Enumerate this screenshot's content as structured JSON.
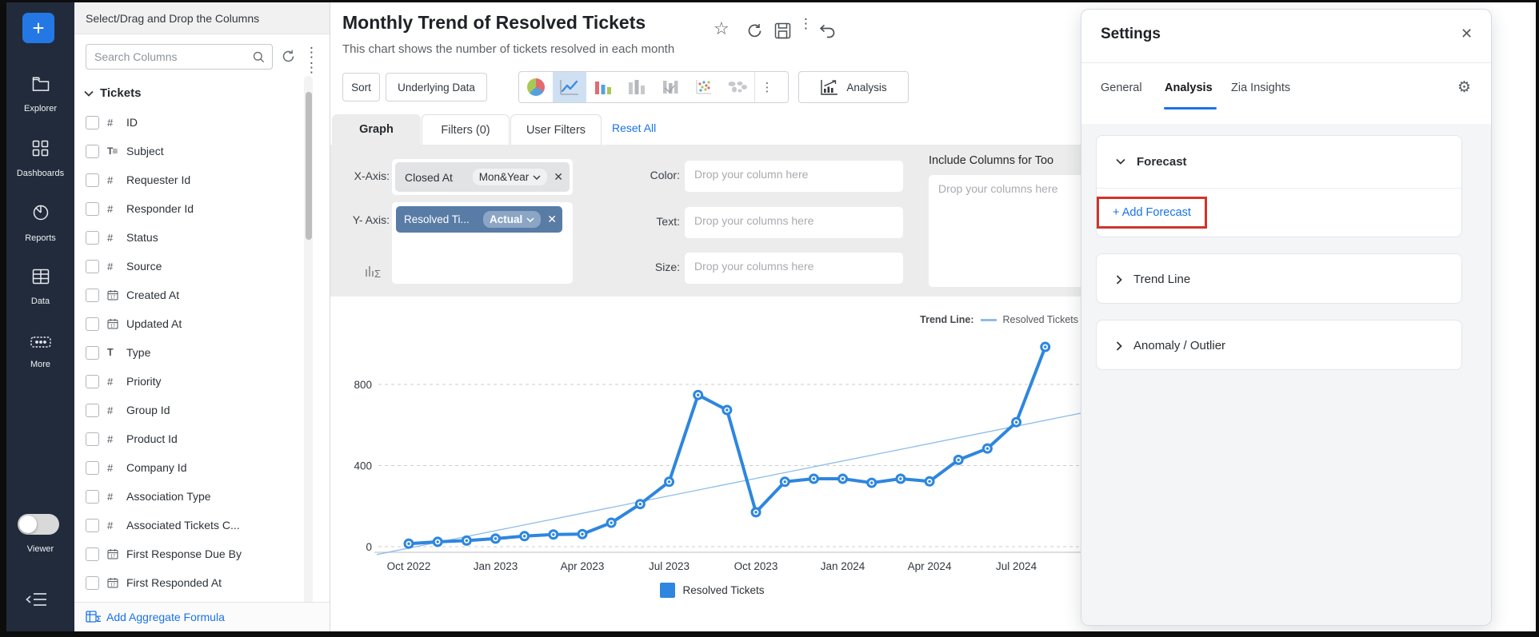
{
  "app": {
    "accent_color": "#1a73e8",
    "sidebar_color": "#222b3b",
    "series_color": "#2e86de",
    "trend_color": "#8cbcea",
    "highlight_color": "#d0342a"
  },
  "sidebar": {
    "plus_label": "+",
    "items": [
      {
        "label": "Explorer"
      },
      {
        "label": "Dashboards"
      },
      {
        "label": "Reports"
      },
      {
        "label": "Data"
      },
      {
        "label": "More"
      }
    ],
    "viewer_label": "Viewer"
  },
  "columns_panel": {
    "header": "Select/Drag and Drop the Columns",
    "search_placeholder": "Search Columns",
    "group_name": "Tickets",
    "items": [
      {
        "name": "ID",
        "type": "num"
      },
      {
        "name": "Subject",
        "type": "text"
      },
      {
        "name": "Requester Id",
        "type": "num"
      },
      {
        "name": "Responder Id",
        "type": "num"
      },
      {
        "name": "Status",
        "type": "num"
      },
      {
        "name": "Source",
        "type": "num"
      },
      {
        "name": "Created At",
        "type": "date"
      },
      {
        "name": "Updated At",
        "type": "date"
      },
      {
        "name": "Type",
        "type": "str"
      },
      {
        "name": "Priority",
        "type": "num"
      },
      {
        "name": "Group Id",
        "type": "num"
      },
      {
        "name": "Product Id",
        "type": "num"
      },
      {
        "name": "Company Id",
        "type": "num"
      },
      {
        "name": "Association Type",
        "type": "num"
      },
      {
        "name": "Associated Tickets C...",
        "type": "num"
      },
      {
        "name": "First Response Due By",
        "type": "date"
      },
      {
        "name": "First Responded At",
        "type": "date"
      }
    ],
    "footer_link": "Add Aggregate Formula"
  },
  "report": {
    "title": "Monthly Trend of Resolved Tickets",
    "subtitle": "This chart shows the number of tickets resolved in each month"
  },
  "toolbar": {
    "sort_label": "Sort",
    "underlying_data_label": "Underlying Data",
    "analysis_label": "Analysis"
  },
  "view_tabs": {
    "graph": "Graph",
    "filters": "Filters (0)",
    "user_filters": "User Filters",
    "reset_all": "Reset All"
  },
  "config": {
    "x_axis_label": "X-Axis:",
    "x_column": "Closed At",
    "x_function": "Mon&Year",
    "y_axis_label": "Y- Axis:",
    "y_column": "Resolved Ti...",
    "y_function": "Actual",
    "color_label": "Color:",
    "color_placeholder": "Drop your column here",
    "text_label": "Text:",
    "text_placeholder": "Drop your columns here",
    "size_label": "Size:",
    "size_placeholder": "Drop your columns here",
    "tooltip_label": "Include Columns for Too",
    "tooltip_placeholder": "Drop your columns here"
  },
  "chart_data": {
    "type": "line",
    "x": [
      "Oct 2022",
      "Nov 2022",
      "Dec 2022",
      "Jan 2023",
      "Feb 2023",
      "Mar 2023",
      "Apr 2023",
      "May 2023",
      "Jun 2023",
      "Jul 2023",
      "Aug 2023",
      "Sep 2023",
      "Oct 2023",
      "Nov 2023",
      "Dec 2023",
      "Jan 2024",
      "Feb 2024",
      "Mar 2024",
      "Apr 2024",
      "May 2024",
      "Jun 2024",
      "Jul 2024",
      "Aug 2024"
    ],
    "series": [
      {
        "name": "Resolved Tickets",
        "color": "#2e86de",
        "values": [
          15,
          24,
          30,
          40,
          52,
          60,
          62,
          118,
          210,
          320,
          748,
          674,
          170,
          320,
          335,
          335,
          315,
          335,
          322,
          428,
          484,
          614,
          985
        ]
      }
    ],
    "trend_line": {
      "legend_prefix": "Trend Line:",
      "name": "Resolved Tickets",
      "color": "#8cbcea",
      "value_at_first_month": -7,
      "value_at_last_month": 623
    },
    "yticks": [
      0,
      400,
      800
    ],
    "ylim": [
      0,
      1000
    ],
    "x_tick_labels": [
      "Oct 2022",
      "Jan 2023",
      "Apr 2023",
      "Jul 2023",
      "Oct 2023",
      "Jan 2024",
      "Apr 2024",
      "Jul 2024"
    ],
    "grid": "dashed-horizontal",
    "legend_position": "bottom",
    "legend_label": "Resolved Tickets"
  },
  "settings": {
    "title": "Settings",
    "tabs": [
      {
        "label": "General"
      },
      {
        "label": "Analysis"
      },
      {
        "label": "Zia Insights"
      }
    ],
    "active_tab": "Analysis",
    "sections": [
      {
        "label": "Forecast",
        "expanded": true,
        "action": "+ Add Forecast"
      },
      {
        "label": "Trend Line",
        "expanded": false
      },
      {
        "label": "Anomaly / Outlier",
        "expanded": false
      }
    ]
  }
}
